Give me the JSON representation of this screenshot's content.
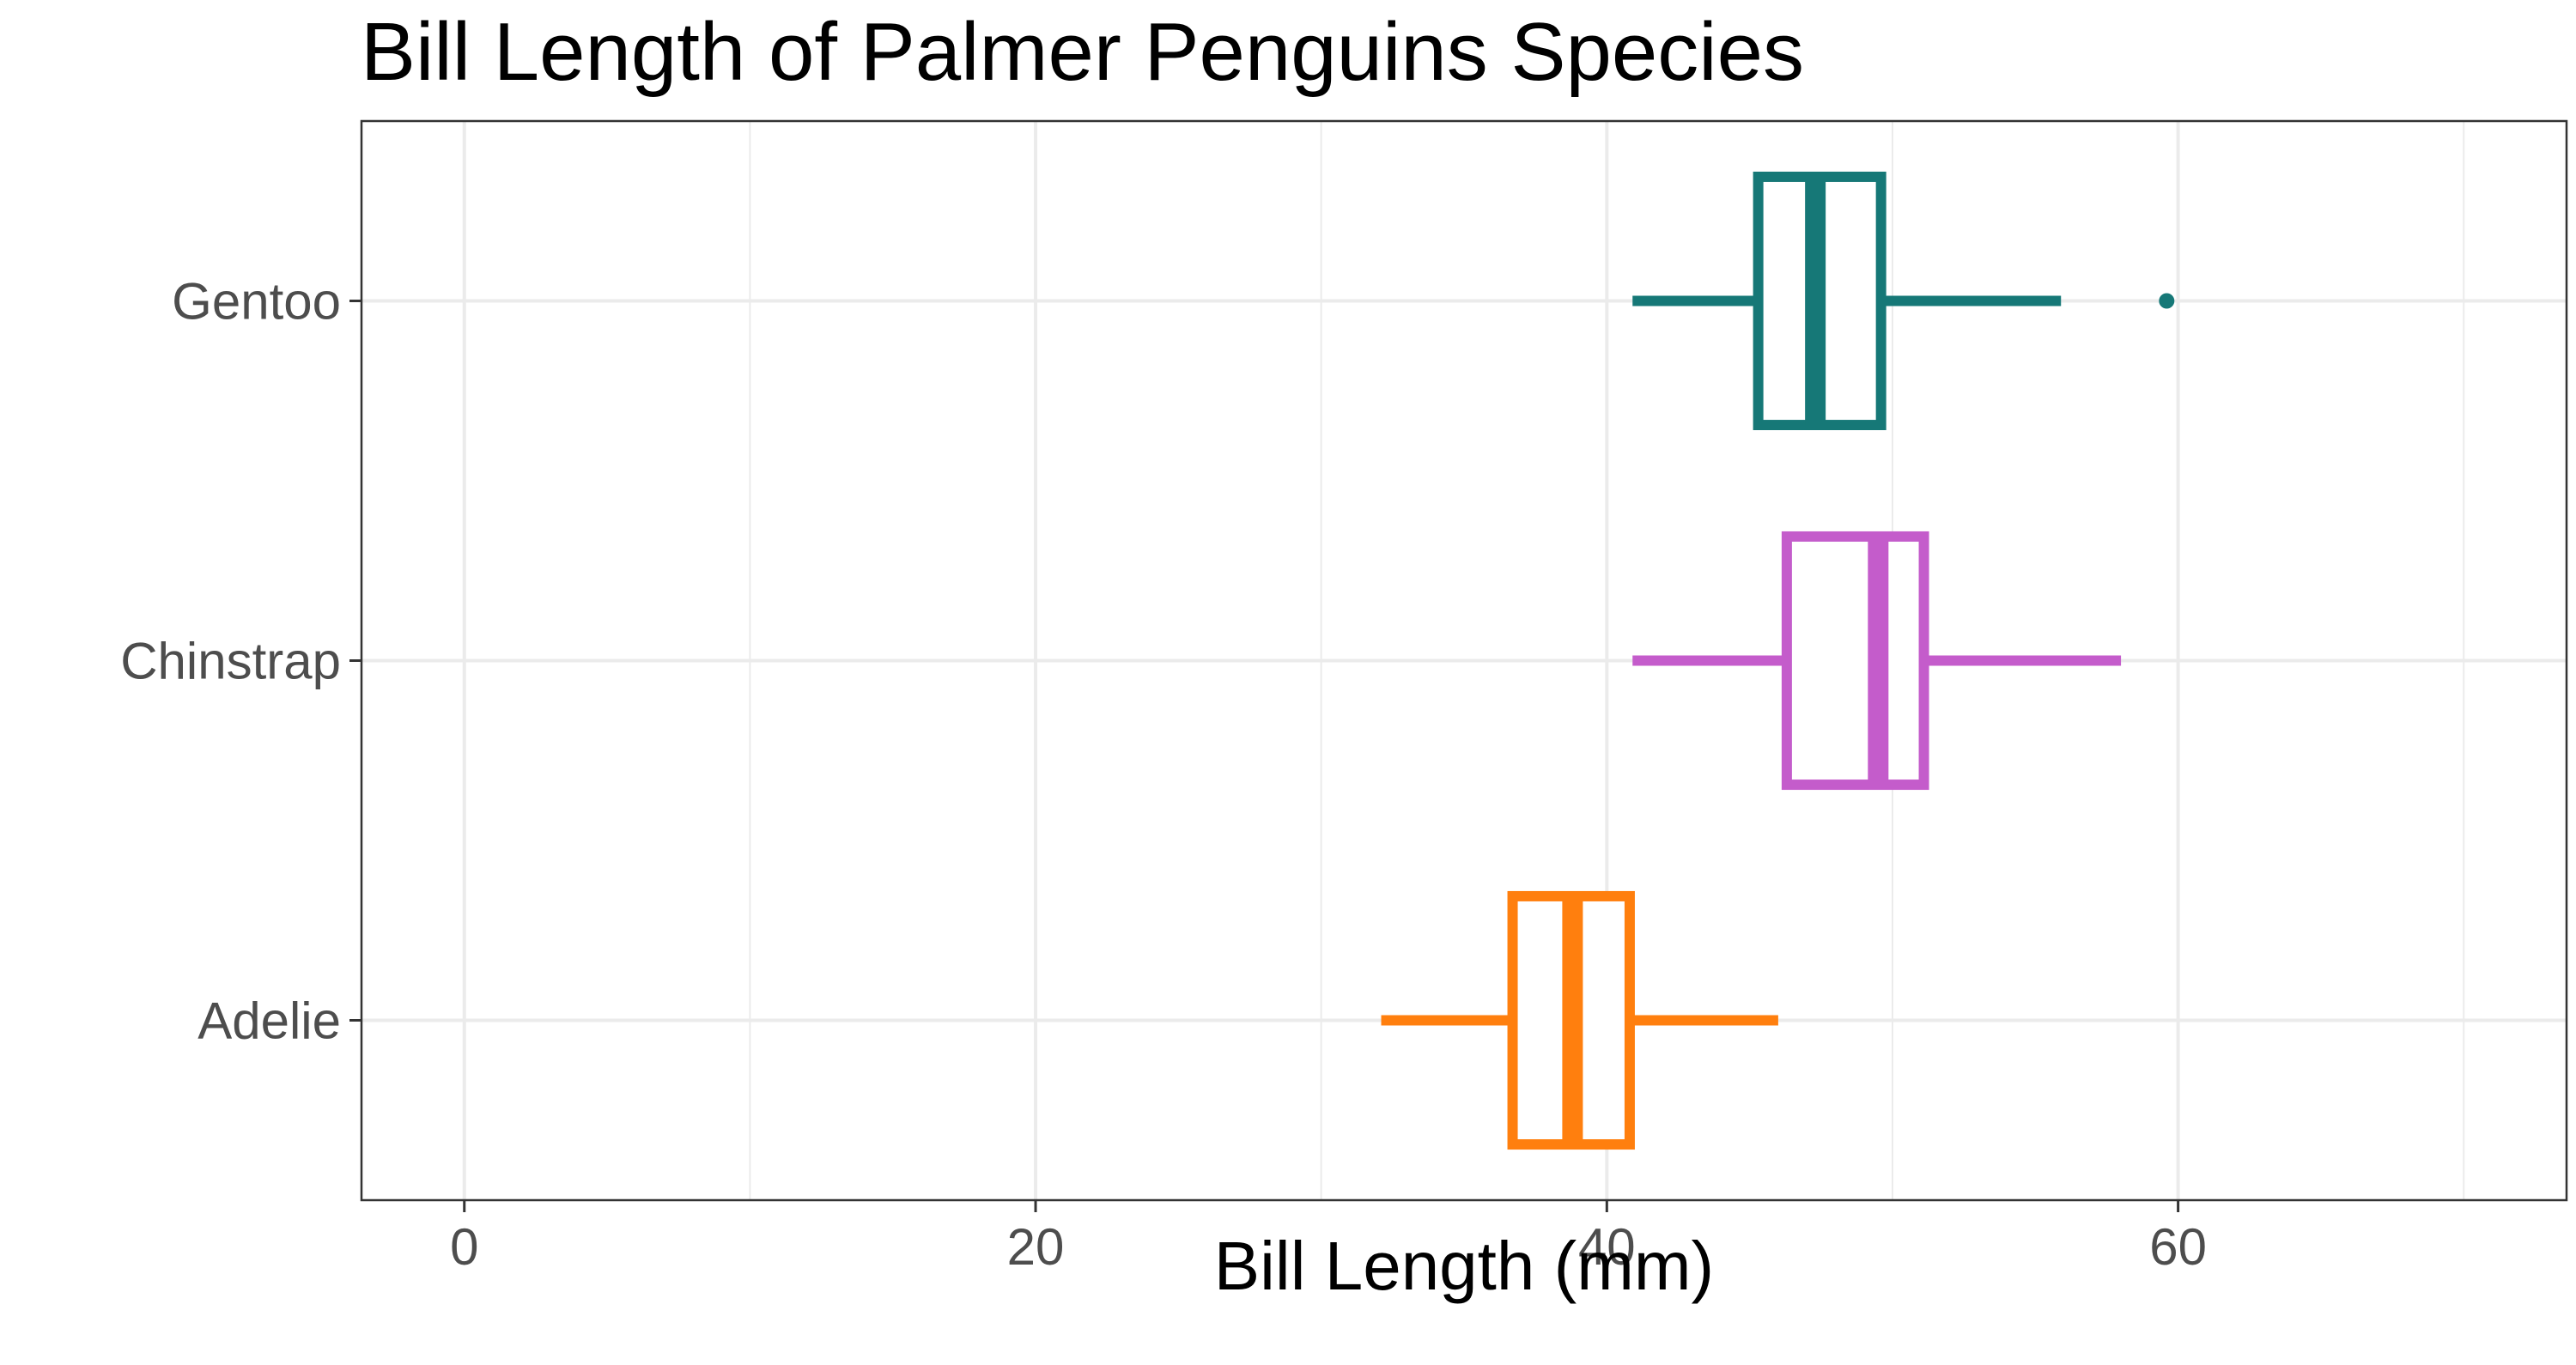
{
  "chart_data": {
    "type": "boxplot",
    "orientation": "horizontal",
    "title": "Bill Length of Palmer Penguins Species",
    "xlabel": "Bill Length (mm)",
    "ylabel": "",
    "xlim": [
      -3.6,
      73.6
    ],
    "x_ticks": [
      0,
      20,
      40,
      60
    ],
    "x_minor_ticks": [
      10,
      30,
      50,
      70
    ],
    "grid": true,
    "legend": "none",
    "categories": [
      "Gentoo",
      "Chinstrap",
      "Adelie"
    ],
    "series": [
      {
        "category": "Gentoo",
        "color": "#167877",
        "min": 40.9,
        "q1": 45.3,
        "median": 47.3,
        "q3": 49.6,
        "max": 55.9,
        "outliers": [
          59.6
        ]
      },
      {
        "category": "Chinstrap",
        "color": "#c45ccb",
        "min": 40.9,
        "q1": 46.3,
        "median": 49.5,
        "q3": 51.1,
        "max": 58.0,
        "outliers": []
      },
      {
        "category": "Adelie",
        "color": "#ff7f0e",
        "min": 32.1,
        "q1": 36.7,
        "median": 38.8,
        "q3": 40.8,
        "max": 46.0,
        "outliers": []
      }
    ]
  }
}
